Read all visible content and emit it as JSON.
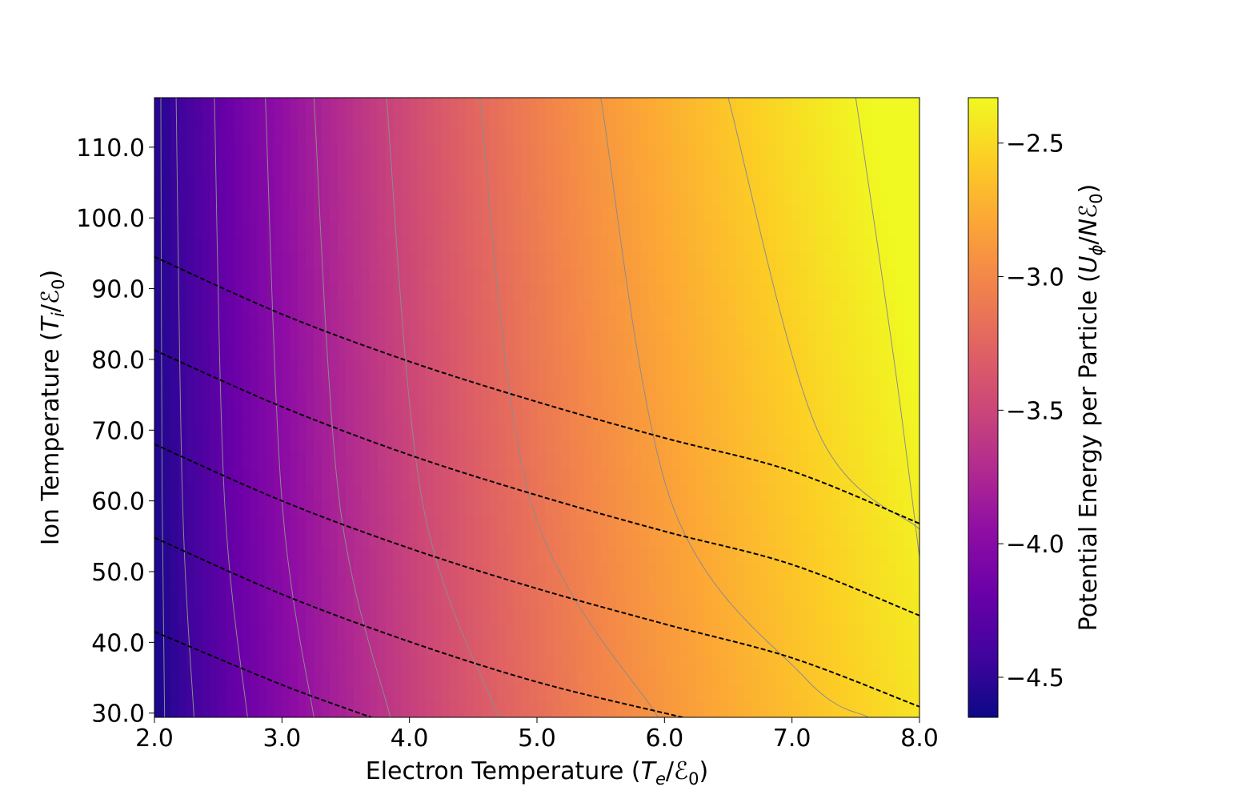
{
  "chart_data": {
    "type": "heatmap",
    "title": "",
    "xlabel": "Electron Temperature (T_e/ℰ_0)",
    "ylabel": "Ion Temperature (T_i/ℰ_0)",
    "xlabel_parts": {
      "prefix": "Electron Temperature (",
      "sym": "T",
      "sub": "e",
      "slash": "/",
      "sym2": "ℰ",
      "sub2": "0",
      "suffix": ")"
    },
    "ylabel_parts": {
      "prefix": "Ion Temperature (",
      "sym": "T",
      "sub": "i",
      "slash": "/",
      "sym2": "ℰ",
      "sub2": "0",
      "suffix": ")"
    },
    "colorbar_label": "Potential Energy per Particle (U_ϕ/Nℰ_0)",
    "colorbar_label_parts": {
      "prefix": "Potential Energy per Particle (",
      "sym": "U",
      "sub": "ϕ",
      "slash": "/",
      "sym2": "Nℰ",
      "sub2": "0",
      "suffix": ")"
    },
    "xlim": [
      2.0,
      8.0
    ],
    "ylim": [
      29.4,
      117.0
    ],
    "x_ticks": [
      2.0,
      3.0,
      4.0,
      5.0,
      6.0,
      7.0,
      8.0
    ],
    "x_tick_labels": [
      "2.0",
      "3.0",
      "4.0",
      "5.0",
      "6.0",
      "7.0",
      "8.0"
    ],
    "y_ticks": [
      30.0,
      40.0,
      50.0,
      60.0,
      70.0,
      80.0,
      90.0,
      100.0,
      110.0
    ],
    "y_tick_labels": [
      "30.0",
      "40.0",
      "50.0",
      "60.0",
      "70.0",
      "80.0",
      "90.0",
      "100.0",
      "110.0"
    ],
    "colorbar_range": [
      -4.65,
      -2.33
    ],
    "colorbar_ticks": [
      -4.5,
      -4.0,
      -3.5,
      -3.0,
      -2.5
    ],
    "colorbar_tick_labels": [
      "−4.5",
      "−4.0",
      "−3.5",
      "−3.0",
      "−2.5"
    ],
    "colormap": "plasma",
    "colormap_stops": [
      "#0d0887",
      "#41049d",
      "#6a00a8",
      "#8f0da4",
      "#b12a90",
      "#cc4778",
      "#e16462",
      "#f2844b",
      "#fca636",
      "#fcce25",
      "#f0f921"
    ],
    "grid": false,
    "solid_contours": {
      "style": "thin gray solid",
      "color": "#8c8c8c",
      "lines": [
        [
          [
            2.05,
            117.0
          ],
          [
            2.06,
            60.0
          ],
          [
            2.08,
            29.4
          ]
        ],
        [
          [
            2.17,
            117.0
          ],
          [
            2.22,
            60.0
          ],
          [
            2.31,
            29.4
          ]
        ],
        [
          [
            2.47,
            117.0
          ],
          [
            2.55,
            60.0
          ],
          [
            2.73,
            29.4
          ]
        ],
        [
          [
            2.87,
            117.0
          ],
          [
            3.0,
            60.0
          ],
          [
            3.25,
            29.4
          ]
        ],
        [
          [
            3.25,
            117.0
          ],
          [
            3.45,
            60.0
          ],
          [
            3.85,
            29.4
          ]
        ],
        [
          [
            3.82,
            117.0
          ],
          [
            4.1,
            60.0
          ],
          [
            4.7,
            29.4
          ]
        ],
        [
          [
            4.55,
            117.0
          ],
          [
            4.95,
            60.0
          ],
          [
            5.95,
            29.4
          ]
        ],
        [
          [
            5.5,
            117.0
          ],
          [
            6.05,
            60.0
          ],
          [
            7.1,
            35.0
          ],
          [
            7.6,
            29.4
          ]
        ],
        [
          [
            6.5,
            117.0
          ],
          [
            7.2,
            70.0
          ],
          [
            8.0,
            56.0
          ]
        ],
        [
          [
            7.5,
            117.0
          ],
          [
            7.8,
            80.0
          ],
          [
            8.0,
            52.0
          ]
        ]
      ]
    },
    "dashed_contours": {
      "style": "black dashed",
      "color": "#000000",
      "lines": [
        [
          [
            2.0,
            94.5
          ],
          [
            3.0,
            86.4
          ],
          [
            4.0,
            79.7
          ],
          [
            5.0,
            74.0
          ],
          [
            6.0,
            68.9
          ],
          [
            7.0,
            64.2
          ],
          [
            8.0,
            56.8
          ]
        ],
        [
          [
            2.0,
            81.3
          ],
          [
            3.0,
            73.3
          ],
          [
            4.0,
            66.5
          ],
          [
            5.0,
            60.8
          ],
          [
            6.0,
            55.7
          ],
          [
            7.0,
            51.0
          ],
          [
            8.0,
            43.8
          ]
        ],
        [
          [
            2.0,
            68.0
          ],
          [
            3.0,
            60.0
          ],
          [
            4.0,
            53.3
          ],
          [
            5.0,
            47.6
          ],
          [
            6.0,
            42.6
          ],
          [
            7.0,
            37.8
          ],
          [
            8.0,
            30.9
          ]
        ],
        [
          [
            2.0,
            54.8
          ],
          [
            3.0,
            46.8
          ],
          [
            4.0,
            40.1
          ],
          [
            5.0,
            34.4
          ],
          [
            6.0,
            30.0
          ],
          [
            6.5,
            28.0
          ]
        ],
        [
          [
            2.0,
            41.5
          ],
          [
            3.0,
            34.0
          ],
          [
            3.7,
            29.4
          ]
        ]
      ]
    }
  }
}
